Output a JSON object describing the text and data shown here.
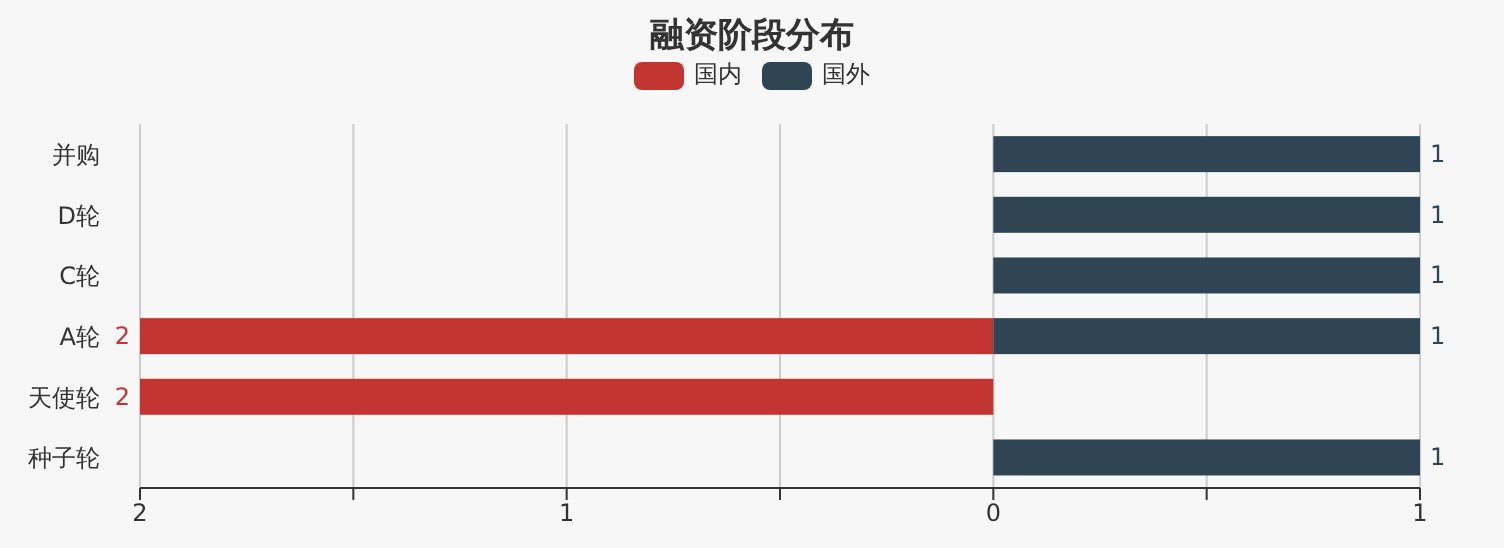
{
  "chart_data": {
    "type": "bar",
    "title": "融资阶段分布",
    "orientation": "horizontal",
    "categories": [
      "并购",
      "D轮",
      "C轮",
      "A轮",
      "天使轮",
      "种子轮"
    ],
    "series": [
      {
        "name": "国内",
        "color": "#c23531",
        "values": [
          null,
          null,
          null,
          2,
          2,
          null
        ],
        "base": [
          null,
          null,
          null,
          -2,
          -2,
          null
        ],
        "value_labels": [
          null,
          null,
          null,
          "2",
          "2",
          null
        ]
      },
      {
        "name": "国外",
        "color": "#2f4554",
        "values": [
          1,
          1,
          1,
          1,
          null,
          1
        ],
        "base": [
          0,
          0,
          0,
          0,
          null,
          0
        ],
        "value_labels": [
          "1",
          "1",
          "1",
          "1",
          null,
          "1"
        ]
      }
    ],
    "xlim": [
      -2,
      1
    ],
    "xticks": [
      {
        "value": -2,
        "label": "2"
      },
      {
        "value": -1.5,
        "label": null
      },
      {
        "value": -1,
        "label": "1"
      },
      {
        "value": -0.5,
        "label": null
      },
      0,
      {
        "value": 0.5,
        "label": null
      },
      1
    ],
    "grid": "x",
    "legend": "top"
  }
}
